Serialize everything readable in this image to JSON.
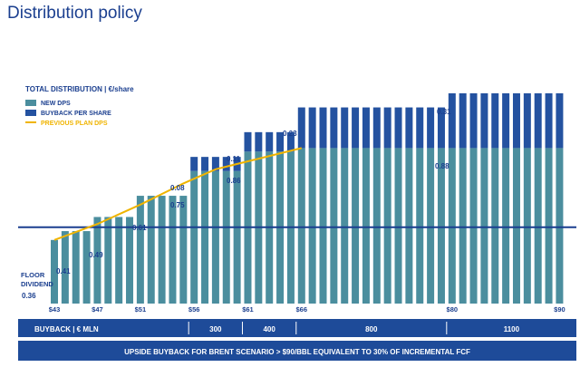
{
  "page": {
    "title": "Distribution policy"
  },
  "chart_data": {
    "type": "bar",
    "title": "TOTAL DISTRIBUTION | €/share",
    "legend": [
      "NEW DPS",
      "BUYBACK PER SHARE",
      "PREVIOUS PLAN DPS"
    ],
    "legend_position": "top-left",
    "colors": {
      "new_dps": "#4b8e9e",
      "buyback": "#2452a0",
      "previous_plan": "#f0b400",
      "floor": "#1b3f8f",
      "band": "#1e4b99"
    },
    "floor_label": [
      "FLOOR",
      "DIVIDEND"
    ],
    "floor_value": 0.36,
    "x_ticks": [
      "$43",
      "$47",
      "$51",
      "$56",
      "$61",
      "$66",
      "$80",
      "$90"
    ],
    "x_tick_values": [
      43,
      47,
      51,
      56,
      61,
      66,
      80,
      90
    ],
    "series": [
      {
        "name": "NEW DPS",
        "x": [
          43,
          44,
          45,
          46,
          47,
          48,
          49,
          50,
          51,
          52,
          53,
          54,
          55,
          56,
          57,
          58,
          59,
          60,
          61,
          62,
          63,
          64,
          65,
          66,
          67,
          68,
          69,
          70,
          71,
          72,
          73,
          74,
          75,
          76,
          77,
          78,
          79,
          80,
          81,
          82,
          83,
          84,
          85,
          86,
          87,
          88,
          89,
          90
        ],
        "values": [
          0.36,
          0.41,
          0.41,
          0.41,
          0.49,
          0.49,
          0.49,
          0.49,
          0.61,
          0.61,
          0.61,
          0.61,
          0.61,
          0.75,
          0.75,
          0.75,
          0.75,
          0.75,
          0.86,
          0.86,
          0.86,
          0.86,
          0.86,
          0.88,
          0.88,
          0.88,
          0.88,
          0.88,
          0.88,
          0.88,
          0.88,
          0.88,
          0.88,
          0.88,
          0.88,
          0.88,
          0.88,
          0.88,
          0.88,
          0.88,
          0.88,
          0.88,
          0.88,
          0.88,
          0.88,
          0.88,
          0.88,
          0.88
        ]
      },
      {
        "name": "BUYBACK PER SHARE",
        "x": [
          56,
          57,
          58,
          59,
          60,
          61,
          62,
          63,
          64,
          65,
          66,
          67,
          68,
          69,
          70,
          71,
          72,
          73,
          74,
          75,
          76,
          77,
          78,
          79,
          80,
          81,
          82,
          83,
          84,
          85,
          86,
          87,
          88,
          89,
          90
        ],
        "values": [
          0.08,
          0.08,
          0.08,
          0.08,
          0.08,
          0.11,
          0.11,
          0.11,
          0.11,
          0.11,
          0.23,
          0.23,
          0.23,
          0.23,
          0.23,
          0.23,
          0.23,
          0.23,
          0.23,
          0.23,
          0.23,
          0.23,
          0.23,
          0.23,
          0.31,
          0.31,
          0.31,
          0.31,
          0.31,
          0.31,
          0.31,
          0.31,
          0.31,
          0.31,
          0.31
        ]
      },
      {
        "name": "PREVIOUS PLAN DPS",
        "x": [
          43,
          47,
          51,
          55,
          58,
          62,
          66
        ],
        "values": [
          0.36,
          0.45,
          0.56,
          0.68,
          0.76,
          0.82,
          0.88
        ]
      }
    ],
    "value_labels": [
      {
        "x": 43,
        "text": "0.36"
      },
      {
        "x": 44,
        "text": "0.41"
      },
      {
        "x": 47,
        "text": "0.49"
      },
      {
        "x": 51,
        "text": "0.61"
      },
      {
        "x": 56,
        "text": "0.75"
      },
      {
        "x": 56,
        "text": "0.08"
      },
      {
        "x": 61,
        "text": "0.86"
      },
      {
        "x": 61,
        "text": "0.11"
      },
      {
        "x": 66,
        "text": "0.23"
      },
      {
        "x": 79,
        "text": "0.88"
      },
      {
        "x": 80,
        "text": "0.31"
      }
    ],
    "buyback_row": {
      "label": "BUYBACK",
      "unit": "€ MLN",
      "segments": [
        {
          "from": 56,
          "to": 61,
          "text": "300"
        },
        {
          "from": 61,
          "to": 66,
          "text": "400"
        },
        {
          "from": 66,
          "to": 80,
          "text": "800"
        },
        {
          "from": 80,
          "to": 90,
          "text": "1100"
        }
      ]
    },
    "footer_banner": "UPSIDE BUYBACK FOR BRENT SCENARIO > $90/BBL EQUIVALENT TO 30% OF INCREMENTAL FCF"
  }
}
